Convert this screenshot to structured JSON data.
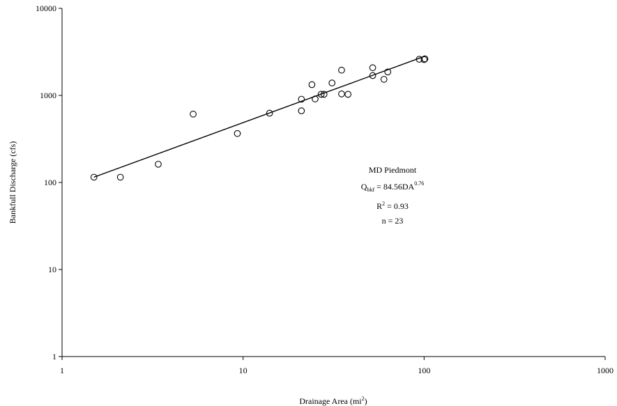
{
  "chart_data": {
    "type": "scatter",
    "xscale": "log",
    "yscale": "log",
    "xlim": [
      1,
      1000
    ],
    "ylim": [
      1,
      10000
    ],
    "x_ticks": [
      1,
      10,
      100,
      1000
    ],
    "x_tick_labels": [
      "1",
      "10",
      "100",
      "1000"
    ],
    "y_ticks": [
      1,
      10,
      100,
      1000,
      10000
    ],
    "y_tick_labels": [
      "1",
      "10",
      "100",
      "1000",
      "10000"
    ],
    "xlabel": "Drainage Area (mi",
    "xlabel_sup": "2",
    "xlabel_end": ")",
    "ylabel": "Bankfull Discharge (cfs)",
    "grid": false,
    "series": [
      {
        "points": [
          [
            1.5,
            115
          ],
          [
            2.1,
            115
          ],
          [
            3.4,
            162
          ],
          [
            5.3,
            610
          ],
          [
            9.3,
            365
          ],
          [
            14,
            625
          ],
          [
            21,
            905
          ],
          [
            21,
            665
          ],
          [
            24,
            1330
          ],
          [
            25,
            910
          ],
          [
            27,
            1030
          ],
          [
            28,
            1030
          ],
          [
            31,
            1390
          ],
          [
            35,
            1040
          ],
          [
            35,
            1950
          ],
          [
            38,
            1030
          ],
          [
            52,
            2080
          ],
          [
            52,
            1690
          ],
          [
            60,
            1530
          ],
          [
            63,
            1860
          ],
          [
            94,
            2600
          ],
          [
            100,
            2580
          ],
          [
            101,
            2630
          ]
        ]
      }
    ],
    "trendline": {
      "a": 84.56,
      "b": 0.76,
      "x_range": [
        1.5,
        101
      ]
    },
    "annotation": {
      "line1": "MD Piedmont",
      "eq_q": "Q",
      "eq_sub": "bkf",
      "eq_main": " = 84.56DA",
      "eq_sup": "0.76",
      "r2_r": "R",
      "r2_sup": "2",
      "r2_rest": " = 0.93",
      "n": "n = 23"
    }
  }
}
